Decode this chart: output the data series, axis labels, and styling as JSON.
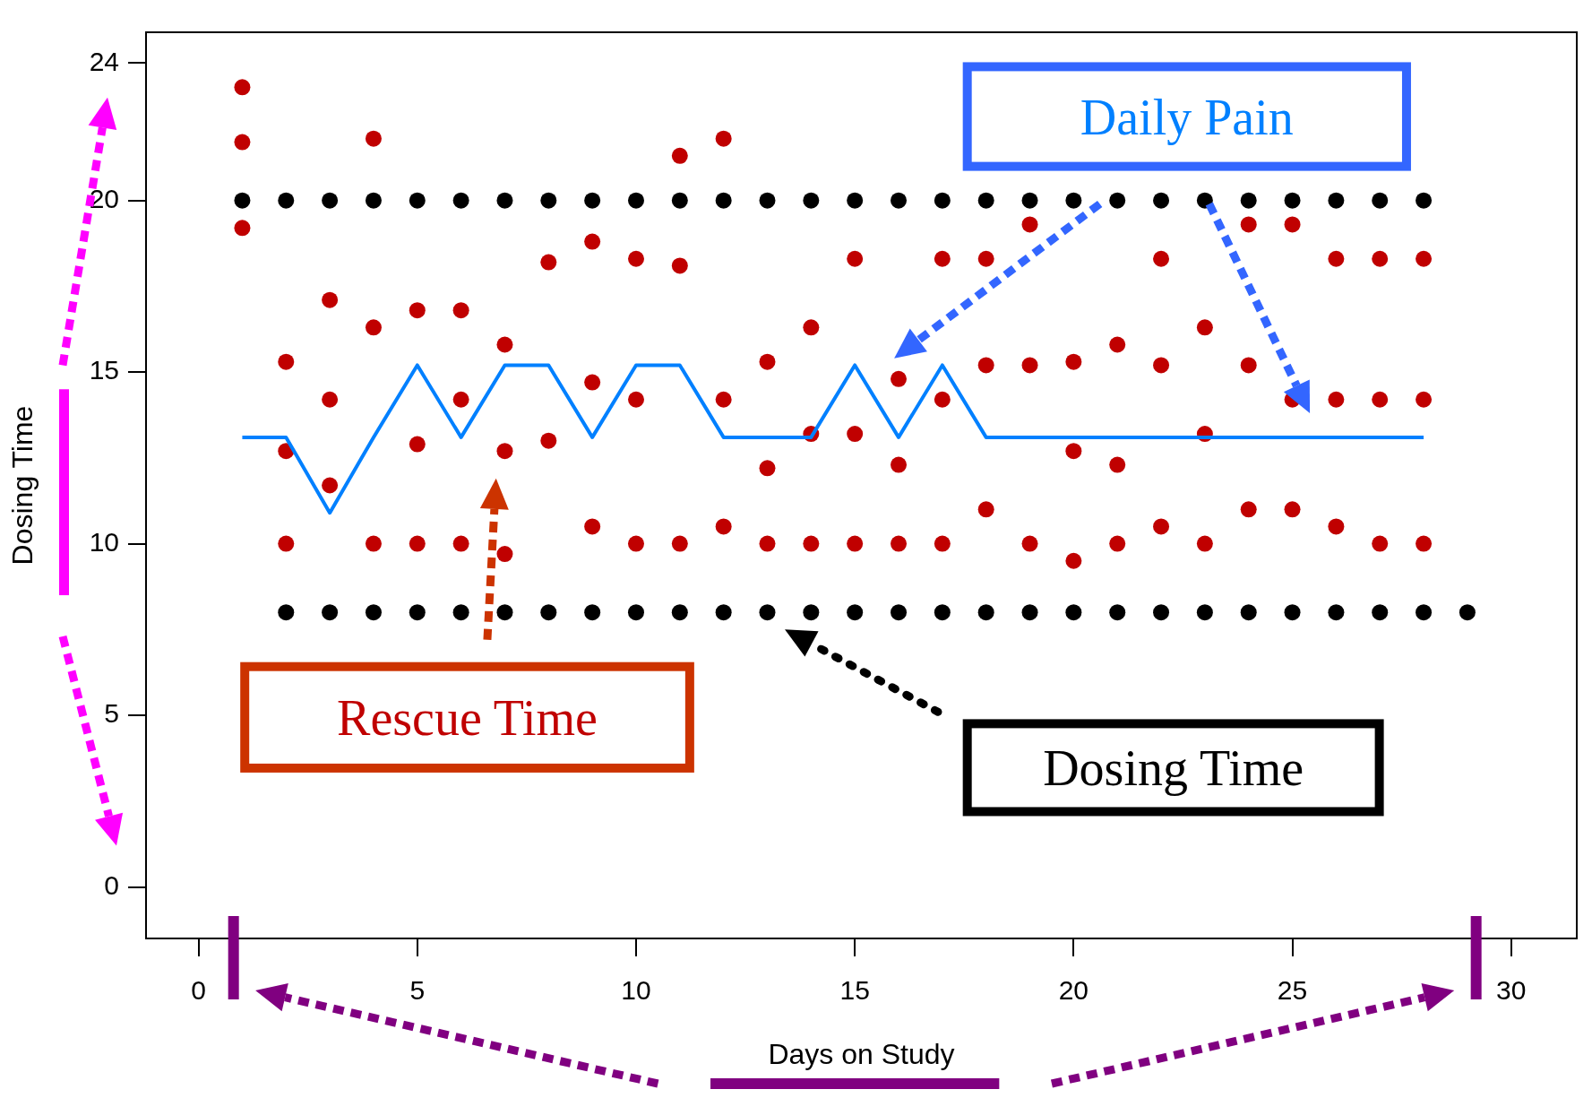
{
  "chart_data": {
    "type": "scatter",
    "xlabel": "Days on Study",
    "ylabel": "Dosing Time",
    "marker": "circle",
    "xlim": [
      -1.2,
      31.5
    ],
    "ylim": [
      -1.5,
      24.9
    ],
    "xticks": [
      0,
      5,
      10,
      15,
      20,
      25,
      30
    ],
    "yticks": [
      0,
      5,
      10,
      15,
      20,
      24
    ],
    "series": [
      {
        "name": "Dosing Time",
        "type": "scatter",
        "color": "#000000",
        "x": [
          1,
          2,
          3,
          4,
          5,
          6,
          7,
          8,
          9,
          10,
          11,
          12,
          13,
          14,
          15,
          16,
          17,
          18,
          19,
          20,
          21,
          22,
          23,
          24,
          25,
          26,
          27,
          28,
          2,
          3,
          4,
          5,
          6,
          7,
          8,
          9,
          10,
          11,
          12,
          13,
          14,
          15,
          16,
          17,
          18,
          19,
          20,
          21,
          22,
          23,
          24,
          25,
          26,
          27,
          28,
          29
        ],
        "values": [
          20,
          20,
          20,
          20,
          20,
          20,
          20,
          20,
          20,
          20,
          20,
          20,
          20,
          20,
          20,
          20,
          20,
          20,
          20,
          20,
          20,
          20,
          20,
          20,
          20,
          20,
          20,
          20,
          8,
          8,
          8,
          8,
          8,
          8,
          8,
          8,
          8,
          8,
          8,
          8,
          8,
          8,
          8,
          8,
          8,
          8,
          8,
          8,
          8,
          8,
          8,
          8,
          8,
          8,
          8,
          8
        ]
      },
      {
        "name": "Rescue Time",
        "type": "scatter",
        "color": "#c00000",
        "x": [
          1,
          1,
          1,
          2,
          2,
          2,
          3,
          3,
          3,
          4,
          4,
          4,
          5,
          5,
          5,
          6,
          6,
          6,
          7,
          7,
          7,
          8,
          8,
          9,
          9,
          9,
          10,
          10,
          10,
          11,
          11,
          11,
          12,
          12,
          12,
          13,
          13,
          13,
          14,
          14,
          14,
          15,
          15,
          15,
          16,
          16,
          16,
          17,
          17,
          17,
          18,
          18,
          18,
          19,
          19,
          19,
          20,
          20,
          20,
          21,
          21,
          21,
          22,
          22,
          22,
          23,
          23,
          23,
          24,
          24,
          24,
          25,
          25,
          25,
          26,
          26,
          26,
          27,
          27,
          27,
          28,
          28,
          28
        ],
        "values": [
          23.3,
          21.7,
          19.2,
          15.3,
          12.7,
          10,
          17.1,
          14.2,
          11.7,
          21.8,
          16.3,
          10,
          16.8,
          12.9,
          10,
          16.8,
          14.2,
          10,
          15.8,
          12.7,
          9.7,
          18.2,
          13,
          18.8,
          14.7,
          10.5,
          18.3,
          14.2,
          10,
          21.3,
          18.1,
          10,
          21.8,
          14.2,
          10.5,
          15.3,
          12.2,
          10,
          16.3,
          13.2,
          10,
          18.3,
          13.2,
          10,
          14.8,
          12.3,
          10,
          18.3,
          14.2,
          10,
          18.3,
          15.2,
          11,
          19.3,
          15.2,
          10,
          15.3,
          12.7,
          9.5,
          15.8,
          12.3,
          10,
          18.3,
          15.2,
          10.5,
          16.3,
          13.2,
          10,
          19.3,
          15.2,
          11,
          19.3,
          14.2,
          11,
          18.3,
          14.2,
          10.5,
          18.3,
          14.2,
          10,
          18.3,
          14.2,
          10
        ]
      },
      {
        "name": "Daily Pain",
        "type": "line",
        "color": "#0080ff",
        "marker": "none",
        "x": [
          1,
          2,
          3,
          4,
          5,
          6,
          7,
          8,
          9,
          10,
          11,
          12,
          13,
          14,
          15,
          16,
          17,
          18,
          19,
          20,
          21,
          22,
          23,
          24,
          25,
          26,
          27,
          28
        ],
        "values": [
          13.1,
          13.1,
          10.9,
          13.1,
          15.2,
          13.1,
          15.2,
          15.2,
          13.1,
          15.2,
          15.2,
          13.1,
          13.1,
          13.1,
          15.2,
          13.1,
          15.2,
          13.1,
          13.1,
          13.1,
          13.1,
          13.1,
          13.1,
          13.1,
          13.1,
          13.1,
          13.1,
          13.1
        ]
      }
    ]
  }
}
